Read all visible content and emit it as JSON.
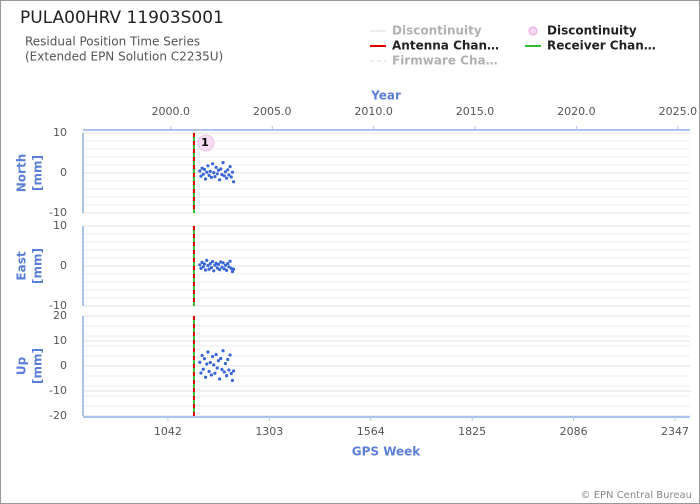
{
  "title": "PULA00HRV 11903S001",
  "subtitle": [
    "Residual Position Time Series",
    "(Extended EPN Solution C2235U)"
  ],
  "footer": "© EPN Central Bureau",
  "legend": [
    {
      "label": "Discontinuity",
      "color": "#cccccc",
      "style": "line",
      "faded": true
    },
    {
      "label": "Discontinuity",
      "color": "#e8a0e0",
      "style": "circle",
      "faded": false
    },
    {
      "label": "Antenna Chan…",
      "color": "#dd0000",
      "style": "line",
      "faded": false
    },
    {
      "label": "Receiver Chan…",
      "color": "#33bb33",
      "style": "line",
      "faded": false
    },
    {
      "label": "Firmware Cha…",
      "color": "#cccccc",
      "style": "dashed",
      "faded": true
    }
  ],
  "events": [
    {
      "x": 1109,
      "label": "1",
      "colors": [
        "#dd0000",
        "#33bb33"
      ]
    }
  ],
  "x2label": "Year",
  "x2lim": [
    1995.67,
    2025.6
  ],
  "x2ticks": [
    {
      "value": 2000,
      "label": "2000.0"
    },
    {
      "value": 2005,
      "label": "2005.0"
    },
    {
      "value": 2010,
      "label": "2010.0"
    },
    {
      "value": 2015,
      "label": "2015.0"
    },
    {
      "value": 2020,
      "label": "2020.0"
    },
    {
      "value": 2025,
      "label": "2025.0"
    }
  ],
  "xlabel": "GPS Week",
  "xlim": [
    823.5,
    2385.6
  ],
  "xticks": [
    1042,
    1303,
    1564,
    1825,
    2086,
    2347
  ],
  "chart_data": [
    {
      "type": "scatter",
      "ylabel": "North",
      "yunit": "[mm]",
      "color": "#3a66d6",
      "grid": true,
      "ylim": [
        -10,
        10
      ],
      "yticks": [
        10,
        0,
        -10
      ],
      "x": [
        1124,
        1127,
        1130,
        1133,
        1136,
        1139,
        1142,
        1145,
        1148,
        1151,
        1154,
        1157,
        1160,
        1163,
        1166,
        1169,
        1172,
        1175,
        1178,
        1181,
        1184,
        1187,
        1190,
        1193,
        1196,
        1199,
        1202,
        1205,
        1208,
        1211
      ],
      "values": [
        0.5,
        -0.8,
        1.2,
        -0.3,
        0.9,
        -1.5,
        0.2,
        1.8,
        -0.6,
        0.4,
        -1.1,
        2.3,
        0.1,
        -0.9,
        1.4,
        -0.2,
        0.7,
        -1.7,
        1.0,
        -0.4,
        2.6,
        -0.7,
        0.3,
        -1.3,
        0.8,
        -0.5,
        1.6,
        -1.0,
        0.2,
        -2.2
      ]
    },
    {
      "type": "scatter",
      "ylabel": "East",
      "yunit": "[mm]",
      "color": "#3a66d6",
      "grid": true,
      "ylim": [
        -10,
        10
      ],
      "yticks": [
        10,
        0,
        -10
      ],
      "x": [
        1124,
        1127,
        1130,
        1133,
        1136,
        1139,
        1142,
        1145,
        1148,
        1151,
        1154,
        1157,
        1160,
        1163,
        1166,
        1169,
        1172,
        1175,
        1178,
        1181,
        1184,
        1187,
        1190,
        1193,
        1196,
        1199,
        1202,
        1205,
        1208,
        1211
      ],
      "values": [
        0.3,
        -0.6,
        0.9,
        -0.2,
        0.5,
        -1.0,
        1.4,
        0.1,
        -0.8,
        0.6,
        -0.4,
        1.1,
        -1.2,
        0.2,
        0.7,
        -0.5,
        0.4,
        -0.9,
        1.0,
        -0.3,
        0.8,
        -0.7,
        0.2,
        -1.1,
        0.6,
        -0.2,
        1.2,
        -0.6,
        -1.4,
        -0.8
      ]
    },
    {
      "type": "scatter",
      "ylabel": "Up",
      "yunit": "[mm]",
      "color": "#3a66d6",
      "grid": true,
      "ylim": [
        -20,
        20
      ],
      "yticks": [
        20,
        10,
        0,
        -10,
        -20
      ],
      "x": [
        1124,
        1127,
        1130,
        1133,
        1136,
        1139,
        1142,
        1145,
        1148,
        1151,
        1154,
        1157,
        1160,
        1163,
        1166,
        1169,
        1172,
        1175,
        1178,
        1181,
        1184,
        1187,
        1190,
        1193,
        1196,
        1199,
        1202,
        1205,
        1208,
        1211
      ],
      "values": [
        1.5,
        -2.8,
        4.2,
        -1.3,
        2.9,
        -4.5,
        0.8,
        5.6,
        -2.2,
        1.4,
        -3.6,
        3.8,
        0.4,
        -2.9,
        4.6,
        -0.8,
        2.1,
        -5.2,
        3.0,
        -1.4,
        6.1,
        -2.4,
        1.0,
        -3.9,
        2.6,
        -1.6,
        4.4,
        -3.0,
        -5.8,
        -2.0
      ]
    }
  ]
}
